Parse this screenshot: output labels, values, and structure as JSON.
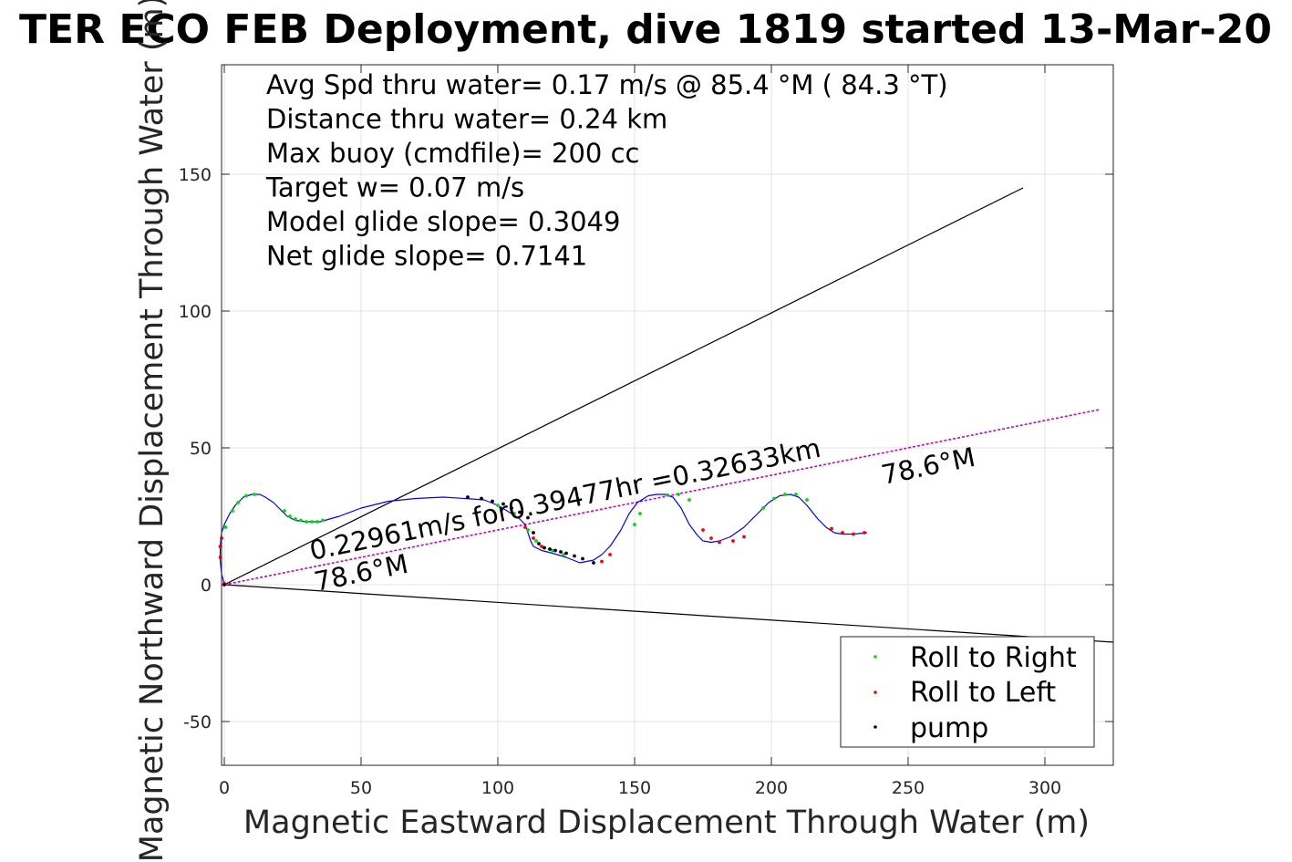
{
  "chart_data": {
    "type": "line",
    "title": "TER ECO FEB Deployment, dive 1819 started 13-Mar-20",
    "xlabel": "Magnetic Eastward Displacement Through Water (m)",
    "ylabel": "Magnetic Northward Displacement Through Water (m)",
    "xlim": [
      -1,
      325
    ],
    "ylim": [
      -66,
      190
    ],
    "xticks": [
      0,
      50,
      100,
      150,
      200,
      250,
      300
    ],
    "yticks": [
      -50,
      0,
      50,
      100,
      150
    ],
    "grid": true,
    "legend_position": "bottom-right",
    "annotations": [
      "Avg Spd thru water=  0.17 m/s @  85.4 °M ( 84.3 °T)",
      "Distance thru water=  0.24 km",
      "Max buoy (cmdfile)= 200 cc",
      "Target w= 0.07 m/s",
      "Model glide slope= 0.3049",
      "Net glide slope= 0.7141"
    ],
    "line_labels": {
      "speed": "0.22961m/s for0.39477hr =0.32633km",
      "heading_near": "78.6°M",
      "heading_far": "78.6°M"
    },
    "reference_lines": [
      {
        "x": [
          0,
          292
        ],
        "y": [
          0,
          145
        ],
        "color": "#000000"
      },
      {
        "x": [
          0,
          325
        ],
        "y": [
          0,
          -21
        ],
        "color": "#000000"
      },
      {
        "x": [
          0,
          320
        ],
        "y": [
          0,
          64
        ],
        "color": "#cc00cc",
        "style": "dashed"
      }
    ],
    "track": {
      "color": "#0000ff",
      "x": [
        0,
        -1,
        -1.5,
        -1.5,
        -1,
        0,
        2,
        4,
        7,
        10,
        13,
        15,
        18,
        20,
        23,
        26,
        30,
        35,
        42,
        50,
        60,
        70,
        80,
        88,
        95,
        100,
        105,
        108,
        110,
        111,
        112,
        113,
        116,
        120,
        125,
        130,
        135,
        138,
        141,
        145,
        148,
        151,
        155,
        158,
        161,
        164,
        167,
        170,
        173,
        175,
        178,
        181,
        185,
        190,
        195,
        199,
        203,
        207,
        210,
        213,
        217,
        220,
        223,
        226,
        230,
        235
      ],
      "y": [
        0,
        4,
        9,
        14,
        19,
        22,
        26,
        29,
        32,
        33,
        33,
        32,
        30,
        28,
        25,
        23.5,
        23,
        23,
        25,
        28,
        30.5,
        31.5,
        32,
        31.5,
        31,
        29,
        26,
        24,
        22,
        19,
        16,
        14,
        12.5,
        11.5,
        10,
        8,
        9,
        11,
        14,
        20,
        26,
        30,
        32.5,
        33,
        33,
        32,
        28,
        22,
        18,
        16,
        15.5,
        16,
        17.5,
        21,
        26,
        30,
        32.5,
        33,
        32,
        29,
        24,
        21,
        19,
        18.5,
        18.5,
        19
      ]
    },
    "series": [
      {
        "name": "Roll to Right",
        "color": "#00dd00",
        "x": [
          0.5,
          3,
          5,
          8,
          11,
          22,
          24,
          26,
          28,
          30,
          32,
          34,
          36,
          100,
          106,
          111,
          114,
          117,
          120,
          124,
          150,
          152,
          162,
          166,
          170,
          197,
          201,
          205,
          209,
          213
        ],
        "y": [
          21,
          27,
          30,
          32.5,
          33,
          27,
          25,
          24,
          23.5,
          23,
          23,
          23,
          23.5,
          29,
          26,
          20,
          16,
          13.5,
          12.5,
          11,
          22,
          26,
          32.8,
          33,
          31,
          28,
          31.5,
          33,
          33,
          31
        ]
      },
      {
        "name": "Roll to Left",
        "color": "#ff0000",
        "x": [
          -1.5,
          -1.5,
          -1,
          0,
          110,
          113,
          116,
          138,
          141,
          175,
          178,
          181,
          186,
          190,
          222,
          226,
          230,
          234
        ],
        "y": [
          10,
          14,
          17,
          0.5,
          21,
          17,
          14,
          8.5,
          11,
          20,
          17,
          15.5,
          16,
          17.5,
          20.5,
          19,
          18.5,
          19
        ]
      },
      {
        "name": "pump",
        "color": "#000000",
        "x": [
          0,
          89,
          94,
          98,
          102,
          105,
          108,
          111,
          113,
          115,
          117,
          119,
          121,
          123,
          125,
          128,
          131,
          135
        ],
        "y": [
          0,
          32,
          31.5,
          30.5,
          29.5,
          28,
          26.5,
          24.5,
          19,
          15,
          13.5,
          13,
          12.5,
          12,
          11.5,
          10.5,
          9.5,
          8
        ]
      }
    ]
  }
}
